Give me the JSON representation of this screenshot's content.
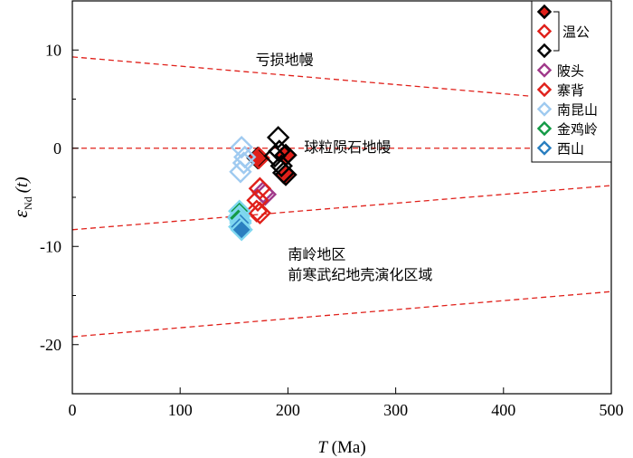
{
  "chart_data": {
    "type": "scatter",
    "xlabel_italic": "T",
    "xlabel_unit": " (Ma)",
    "ylabel_eps": "ε",
    "ylabel_sub": "Nd",
    "ylabel_paren": "(t)",
    "xlim": [
      0,
      500
    ],
    "ylim": [
      -25,
      15
    ],
    "xticks": [
      0,
      100,
      200,
      300,
      400,
      500
    ],
    "yticks": [
      10,
      0,
      -10,
      -20
    ],
    "ytick_labels": [
      "10",
      "0",
      "-10",
      "-20"
    ],
    "grid": false,
    "reference_lines": [
      {
        "x": [
          0,
          500
        ],
        "y": [
          9.3,
          4.6
        ]
      },
      {
        "x": [
          0,
          500
        ],
        "y": [
          0,
          0
        ]
      },
      {
        "x": [
          0,
          500
        ],
        "y": [
          -8.3,
          -3.8
        ]
      },
      {
        "x": [
          0,
          500
        ],
        "y": [
          -19.2,
          -14.6
        ]
      }
    ],
    "annotations": [
      {
        "text": "亏损地幔",
        "x": 170,
        "y": 8.5
      },
      {
        "text": "球粒陨石地幔",
        "x": 215,
        "y": -0.4
      },
      {
        "text": "南岭地区",
        "x": 200,
        "y": -11.3
      },
      {
        "text": "前寒武纪地壳演化区域",
        "x": 200,
        "y": -13.4
      }
    ],
    "series": [
      {
        "name": "温公",
        "marker": "filled",
        "color": "#e0201a",
        "points": [
          [
            172,
            -1.0
          ],
          [
            198,
            -0.7
          ],
          [
            198,
            -2.7
          ]
        ]
      },
      {
        "name": "温公",
        "marker": "open",
        "color": "#e0201a",
        "points": [
          [
            173,
            -1.0
          ]
        ]
      },
      {
        "name": "温公",
        "marker": "open",
        "color": "#000000",
        "points": [
          [
            191,
            1.1
          ],
          [
            192,
            -0.3
          ],
          [
            194,
            -1.8
          ],
          [
            196,
            -2.5
          ],
          [
            188,
            -0.8
          ]
        ]
      },
      {
        "name": "陂头",
        "marker": "open",
        "color": "#a0398a",
        "points": [
          [
            177,
            -4.5
          ],
          [
            179,
            -4.7
          ]
        ]
      },
      {
        "name": "寨背",
        "marker": "open",
        "color": "#e0201a",
        "points": [
          [
            174,
            -4.1
          ],
          [
            172,
            -5.3
          ],
          [
            171,
            -6.4
          ],
          [
            174,
            -6.6
          ]
        ]
      },
      {
        "name": "南昆山",
        "marker": "open",
        "color": "#9fcaf0",
        "points": [
          [
            157,
            0.1
          ],
          [
            160,
            -0.9
          ],
          [
            156,
            -2.4
          ],
          [
            159,
            -1.5
          ]
        ]
      },
      {
        "name": "金鸡岭",
        "marker": "mixed",
        "color": "#139a45",
        "points": [
          [
            155,
            -6.4
          ],
          [
            155,
            -6.9
          ],
          [
            156,
            -7.4
          ],
          [
            154,
            -7.1
          ]
        ]
      },
      {
        "name": "西山",
        "marker": "mixed",
        "color": "#2a7fc0",
        "points": [
          [
            156,
            -7.6
          ],
          [
            155,
            -8.0
          ],
          [
            157,
            -8.3
          ]
        ]
      }
    ],
    "legend": {
      "placement": "top-right",
      "entries": [
        {
          "marker": "filled",
          "color": "#e0201a"
        },
        {
          "marker": "open",
          "color": "#e0201a"
        },
        {
          "marker": "open",
          "color": "#000000"
        },
        {
          "label": "陂头",
          "marker": "open",
          "color": "#a0398a"
        },
        {
          "label": "寨背",
          "marker": "open",
          "color": "#e0201a"
        },
        {
          "label": "南昆山",
          "marker": "open",
          "color": "#9fcaf0"
        },
        {
          "label": "金鸡岭",
          "marker": "open",
          "color": "#139a45"
        },
        {
          "label": "西山",
          "marker": "open",
          "color": "#2a7fc0"
        }
      ],
      "group_label": "温公"
    }
  }
}
